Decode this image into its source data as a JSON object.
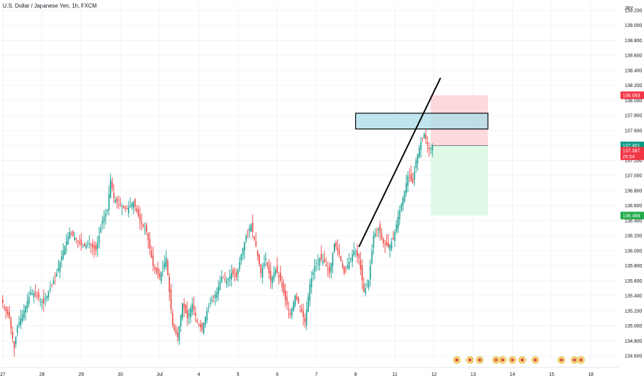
{
  "header": {
    "title": "U.S. Dollar / Japanese Yen, 1h, FXCM"
  },
  "currency": "JPY",
  "colors": {
    "up": "#26a69a",
    "down": "#ef5350",
    "grid": "#f0f3fa",
    "zone_fill": "#a9dcea",
    "stop_fill": "#fcd0d4",
    "target_fill": "#d8f7e0",
    "badge_red": "#f23645",
    "badge_green": "#089981",
    "badge_target": "#22ab4c"
  },
  "chart_data": {
    "type": "candlestick",
    "title": "U.S. Dollar / Japanese Yen, 1h, FXCM",
    "ylim": [
      134.5,
      139.3
    ],
    "y_ticks": [
      "134.600",
      "134.800",
      "135.000",
      "135.200",
      "135.400",
      "135.600",
      "135.800",
      "136.000",
      "136.200",
      "136.400",
      "136.600",
      "136.800",
      "137.000",
      "137.200",
      "137.400",
      "137.600",
      "137.800",
      "138.000",
      "138.200",
      "138.400",
      "138.600",
      "138.800",
      "139.000",
      "139.200"
    ],
    "x_ticks": [
      "27",
      "28",
      "29",
      "30",
      "Jul",
      "4",
      "5",
      "6",
      "7",
      "8",
      "11",
      "12",
      "13",
      "14",
      "15",
      "18"
    ],
    "x_tick_bar_index": [
      0,
      24,
      48,
      72,
      96,
      120,
      144,
      168,
      192,
      216,
      240,
      264,
      288,
      312,
      336,
      360
    ],
    "close_path": [
      [
        0,
        135.3
      ],
      [
        4,
        135.1
      ],
      [
        7,
        134.7
      ],
      [
        9,
        135.0
      ],
      [
        13,
        135.2
      ],
      [
        17,
        135.45
      ],
      [
        21,
        135.4
      ],
      [
        25,
        135.3
      ],
      [
        29,
        135.5
      ],
      [
        33,
        135.7
      ],
      [
        37,
        136.0
      ],
      [
        41,
        136.25
      ],
      [
        45,
        136.15
      ],
      [
        49,
        136.05
      ],
      [
        53,
        136.1
      ],
      [
        57,
        136.0
      ],
      [
        61,
        136.4
      ],
      [
        64,
        136.55
      ],
      [
        66,
        136.95
      ],
      [
        68,
        136.7
      ],
      [
        72,
        136.6
      ],
      [
        76,
        136.55
      ],
      [
        80,
        136.65
      ],
      [
        84,
        136.4
      ],
      [
        88,
        136.25
      ],
      [
        92,
        135.8
      ],
      [
        96,
        135.65
      ],
      [
        100,
        135.9
      ],
      [
        104,
        135.0
      ],
      [
        107,
        134.85
      ],
      [
        110,
        135.3
      ],
      [
        113,
        135.1
      ],
      [
        116,
        135.3
      ],
      [
        119,
        135.05
      ],
      [
        122,
        134.95
      ],
      [
        125,
        135.2
      ],
      [
        128,
        135.35
      ],
      [
        131,
        135.45
      ],
      [
        134,
        135.65
      ],
      [
        137,
        135.6
      ],
      [
        140,
        135.7
      ],
      [
        143,
        135.65
      ],
      [
        146,
        135.95
      ],
      [
        149,
        136.2
      ],
      [
        152,
        136.35
      ],
      [
        155,
        136.05
      ],
      [
        158,
        135.7
      ],
      [
        161,
        135.9
      ],
      [
        164,
        135.6
      ],
      [
        167,
        135.75
      ],
      [
        170,
        135.6
      ],
      [
        173,
        135.35
      ],
      [
        176,
        135.15
      ],
      [
        179,
        135.4
      ],
      [
        182,
        135.25
      ],
      [
        185,
        135.05
      ],
      [
        188,
        135.55
      ],
      [
        191,
        135.8
      ],
      [
        194,
        135.9
      ],
      [
        197,
        135.85
      ],
      [
        200,
        135.7
      ],
      [
        203,
        136.1
      ],
      [
        206,
        135.95
      ],
      [
        209,
        135.7
      ],
      [
        212,
        135.85
      ],
      [
        215,
        136.0
      ],
      [
        218,
        135.9
      ],
      [
        221,
        135.45
      ],
      [
        224,
        135.6
      ],
      [
        227,
        136.2
      ],
      [
        230,
        136.3
      ],
      [
        233,
        136.1
      ],
      [
        236,
        136.05
      ],
      [
        239,
        136.15
      ],
      [
        242,
        136.45
      ],
      [
        245,
        136.7
      ],
      [
        248,
        137.0
      ],
      [
        251,
        136.9
      ],
      [
        253,
        137.2
      ],
      [
        256,
        137.45
      ],
      [
        258,
        137.55
      ],
      [
        261,
        137.35
      ],
      [
        263,
        137.4
      ]
    ],
    "trendline": {
      "from": [
        218,
        136.05
      ],
      "to": [
        268,
        138.3
      ]
    },
    "supply_zone": {
      "x": [
        216,
        297
      ],
      "y": [
        137.62,
        137.83
      ]
    },
    "position": {
      "x": [
        262,
        297
      ],
      "entry": 137.4,
      "stop": 138.069,
      "target": 136.468
    },
    "price_labels": {
      "stop": "138.069",
      "last": "137.401",
      "bid": "137.367",
      "countdown": "25:54",
      "target": "136.468"
    },
    "events": {
      "bar_index": [
        278,
        286,
        292,
        302,
        306,
        312,
        318,
        326,
        342,
        350,
        354
      ]
    }
  }
}
